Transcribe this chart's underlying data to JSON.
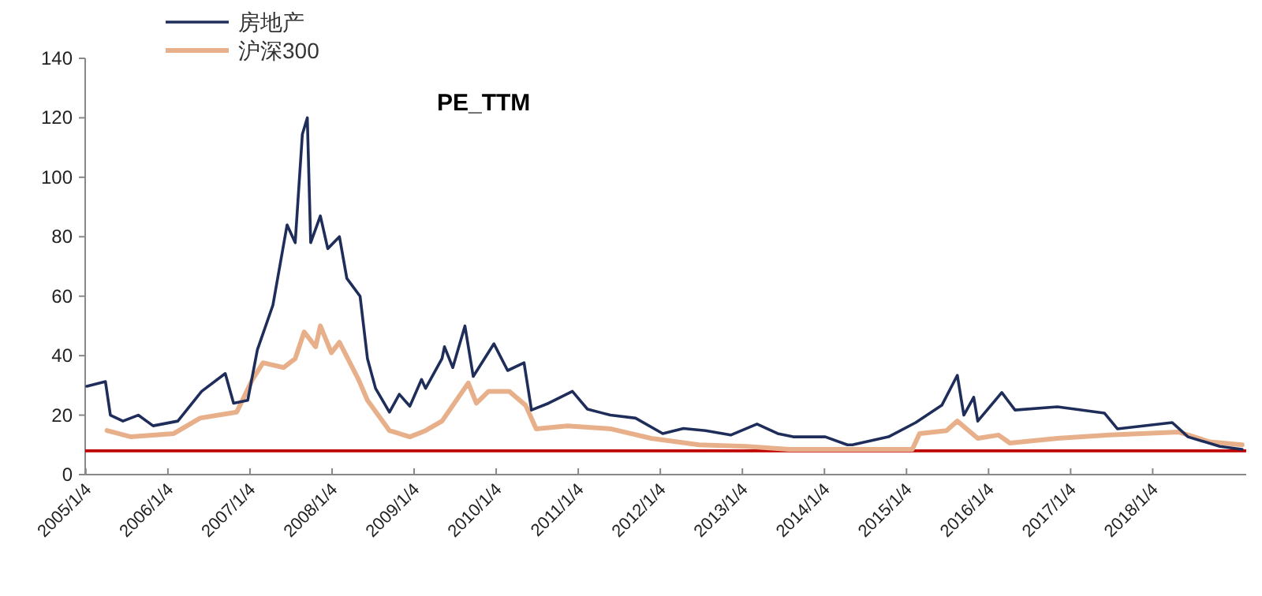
{
  "chart_data": {
    "type": "line",
    "title": "PE_TTM",
    "legend": "top left",
    "grid": false,
    "marker": "none",
    "line_style": "solid",
    "xlim": [
      "2005-01-01",
      "2019-02-24"
    ],
    "xticks": [
      {
        "value": "2005-01-04",
        "label": "2005/1/4"
      },
      {
        "value": "2006-01-04",
        "label": "2006/1/4"
      },
      {
        "value": "2007-01-04",
        "label": "2007/1/4"
      },
      {
        "value": "2008-01-04",
        "label": "2008/1/4"
      },
      {
        "value": "2009-01-04",
        "label": "2009/1/4"
      },
      {
        "value": "2010-01-04",
        "label": "2010/1/4"
      },
      {
        "value": "2011-01-04",
        "label": "2011/1/4"
      },
      {
        "value": "2012-01-04",
        "label": "2012/1/4"
      },
      {
        "value": "2013-01-04",
        "label": "2013/1/4"
      },
      {
        "value": "2014-01-04",
        "label": "2014/1/4"
      },
      {
        "value": "2015-01-04",
        "label": "2015/1/4"
      },
      {
        "value": "2016-01-04",
        "label": "2016/1/4"
      },
      {
        "value": "2017-01-04",
        "label": "2017/1/4"
      },
      {
        "value": "2018-01-04",
        "label": "2018/1/4"
      }
    ],
    "ylim": [
      0,
      140
    ],
    "yticks": [
      0,
      20,
      40,
      60,
      80,
      100,
      120,
      140
    ],
    "ref_lines": [
      {
        "axis": "y",
        "value": 8,
        "color": "#c00000"
      }
    ],
    "series": [
      {
        "name": "房地产",
        "color": "#1f2d5a",
        "x": [
          "2005-01-08",
          "2005-04-01",
          "2005-04-23",
          "2005-06-18",
          "2005-08-25",
          "2005-10-30",
          "2006-02-17",
          "2006-06-03",
          "2006-09-16",
          "2006-10-23",
          "2006-12-25",
          "2007-02-06",
          "2007-04-16",
          "2007-06-18",
          "2007-07-24",
          "2007-08-25",
          "2007-09-16",
          "2007-10-01",
          "2007-11-13",
          "2007-12-16",
          "2008-02-06",
          "2008-03-10",
          "2008-05-08",
          "2008-06-10",
          "2008-07-16",
          "2008-09-16",
          "2008-10-30",
          "2008-12-16",
          "2009-02-06",
          "2009-02-24",
          "2009-05-08",
          "2009-05-19",
          "2009-06-25",
          "2009-08-18",
          "2009-09-24",
          "2009-12-25",
          "2010-02-24",
          "2010-05-08",
          "2010-06-10",
          "2010-08-25",
          "2010-12-09",
          "2011-02-14",
          "2011-05-27",
          "2011-09-16",
          "2012-01-15",
          "2012-04-16",
          "2012-07-24",
          "2012-11-13",
          "2013-03-10",
          "2013-06-10",
          "2013-08-18",
          "2014-01-08",
          "2014-04-16",
          "2014-05-08",
          "2014-10-16",
          "2015-02-14",
          "2015-06-10",
          "2015-08-18",
          "2015-09-16",
          "2015-10-30",
          "2015-11-17",
          "2016-03-03",
          "2016-05-01",
          "2016-11-06",
          "2017-06-03",
          "2017-07-31",
          "2018-04-01",
          "2018-06-10",
          "2018-10-30",
          "2019-02-06"
        ],
        "values": [
          29.7,
          31.3,
          20,
          18,
          20,
          16.4,
          18,
          28,
          34,
          24,
          25,
          42,
          57,
          84,
          78,
          114.5,
          120,
          78,
          87,
          76,
          80,
          66,
          60,
          39,
          29,
          21,
          27,
          23,
          32,
          29,
          39,
          43,
          36,
          50,
          33,
          44,
          35,
          37.6,
          21.7,
          24,
          28,
          22,
          20,
          19,
          13.8,
          15.5,
          14.8,
          13.3,
          17,
          13.8,
          12.7,
          12.7,
          10,
          10,
          12.7,
          17.5,
          23.3,
          33.4,
          20,
          26,
          18,
          27.6,
          21.7,
          22.8,
          20.7,
          15.4,
          17.5,
          12.7,
          9.5,
          8.5
        ]
      },
      {
        "name": "沪深300",
        "color": "#e8b08a",
        "x": [
          "2005-04-08",
          "2005-07-24",
          "2006-01-30",
          "2006-05-27",
          "2006-11-06",
          "2007-01-15",
          "2007-03-03",
          "2007-06-03",
          "2007-07-24",
          "2007-09-02",
          "2007-10-23",
          "2007-11-13",
          "2008-01-01",
          "2008-02-06",
          "2008-05-01",
          "2008-06-10",
          "2008-09-16",
          "2008-12-16",
          "2009-02-24",
          "2009-05-08",
          "2009-09-02",
          "2009-10-08",
          "2009-12-01",
          "2010-03-03",
          "2010-05-15",
          "2010-07-01",
          "2010-11-17",
          "2011-05-27",
          "2011-11-24",
          "2012-06-25",
          "2013-01-22",
          "2013-07-31",
          "2014-04-16",
          "2014-08-08",
          "2015-01-30",
          "2015-03-03",
          "2015-07-01",
          "2015-08-18",
          "2015-11-17",
          "2016-02-17",
          "2016-04-08",
          "2016-11-06",
          "2017-06-25",
          "2018-05-01",
          "2018-09-16",
          "2019-02-06"
        ],
        "values": [
          14.8,
          12.7,
          13.8,
          19,
          21,
          32,
          37.6,
          36,
          39,
          48,
          43,
          50,
          41,
          44.5,
          32,
          25,
          14.8,
          12.7,
          14.8,
          18,
          30.8,
          24,
          28,
          28,
          23.3,
          15.4,
          16.4,
          15.4,
          12.2,
          10,
          9.5,
          8.5,
          8.5,
          8.5,
          8.5,
          13.8,
          14.8,
          18,
          12.2,
          13.3,
          10.6,
          12.2,
          13.3,
          14.3,
          11,
          10
        ]
      }
    ]
  }
}
